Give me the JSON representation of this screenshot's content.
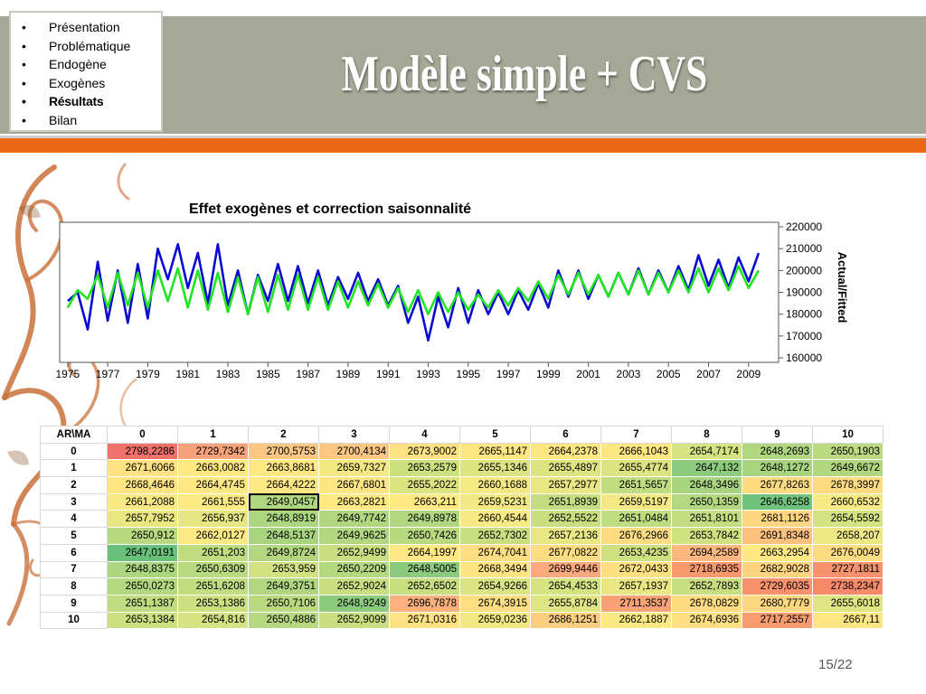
{
  "slide": {
    "title": "Modèle simple + CVS",
    "page_number": "15/22",
    "colors": {
      "header": "#a5a896",
      "accent": "#ea6715"
    }
  },
  "nav": {
    "items": [
      {
        "label": "Présentation",
        "active": false
      },
      {
        "label": "Problématique",
        "active": false
      },
      {
        "label": "Endogène",
        "active": false
      },
      {
        "label": "Exogènes",
        "active": false
      },
      {
        "label": "Résultats",
        "active": true
      },
      {
        "label": "Bilan",
        "active": false
      }
    ]
  },
  "chart_data": {
    "type": "line",
    "title": "Effet exogènes et correction saisonnalité",
    "ylabel": "Actual/Fitted",
    "xlabel": "",
    "ylim": [
      160000,
      220000
    ],
    "xlim": [
      1974.6,
      2010.5
    ],
    "yticks": [
      "220000",
      "210000",
      "200000",
      "190000",
      "180000",
      "170000",
      "160000"
    ],
    "xticks": [
      "1975",
      "1977",
      "1979",
      "1981",
      "1983",
      "1985",
      "1987",
      "1989",
      "1991",
      "1993",
      "1995",
      "1997",
      "1999",
      "2001",
      "2003",
      "2005",
      "2007",
      "2009"
    ],
    "series": [
      {
        "name": "Actual",
        "color": "#0a0ad2",
        "x": [
          1975.0,
          1975.5,
          1976.0,
          1976.5,
          1977.0,
          1977.5,
          1978.0,
          1978.5,
          1979.0,
          1979.5,
          1980.0,
          1980.5,
          1981.0,
          1981.5,
          1982.0,
          1982.5,
          1983.0,
          1983.5,
          1984.0,
          1984.5,
          1985.0,
          1985.5,
          1986.0,
          1986.5,
          1987.0,
          1987.5,
          1988.0,
          1988.5,
          1989.0,
          1989.5,
          1990.0,
          1990.5,
          1991.0,
          1991.5,
          1992.0,
          1992.5,
          1993.0,
          1993.5,
          1994.0,
          1994.5,
          1995.0,
          1995.5,
          1996.0,
          1996.5,
          1997.0,
          1997.5,
          1998.0,
          1998.5,
          1999.0,
          1999.5,
          2000.0,
          2000.5,
          2001.0,
          2001.5,
          2002.0,
          2002.5,
          2003.0,
          2003.5,
          2004.0,
          2004.5,
          2005.0,
          2005.5,
          2006.0,
          2006.5,
          2007.0,
          2007.5,
          2008.0,
          2008.5,
          2009.0,
          2009.5
        ],
        "values": [
          186000,
          190000,
          173000,
          204000,
          177000,
          200000,
          176000,
          203000,
          178000,
          210000,
          196000,
          212000,
          192000,
          208000,
          185000,
          212000,
          184000,
          200000,
          180000,
          198000,
          186000,
          203000,
          186000,
          202000,
          185000,
          200000,
          184000,
          197000,
          187000,
          199000,
          186000,
          196000,
          184000,
          193000,
          176000,
          188000,
          168000,
          188000,
          174000,
          192000,
          176000,
          191000,
          180000,
          190000,
          180000,
          191000,
          182000,
          194000,
          183000,
          200000,
          188000,
          200000,
          187000,
          198000,
          188000,
          199000,
          189000,
          201000,
          189000,
          200000,
          190000,
          202000,
          191000,
          207000,
          193000,
          205000,
          192000,
          206000,
          195000,
          208000
        ]
      },
      {
        "name": "Fitted",
        "color": "#22e522",
        "x": [
          1975.0,
          1975.5,
          1976.0,
          1976.5,
          1977.0,
          1977.5,
          1978.0,
          1978.5,
          1979.0,
          1979.5,
          1980.0,
          1980.5,
          1981.0,
          1981.5,
          1982.0,
          1982.5,
          1983.0,
          1983.5,
          1984.0,
          1984.5,
          1985.0,
          1985.5,
          1986.0,
          1986.5,
          1987.0,
          1987.5,
          1988.0,
          1988.5,
          1989.0,
          1989.5,
          1990.0,
          1990.5,
          1991.0,
          1991.5,
          1992.0,
          1992.5,
          1993.0,
          1993.5,
          1994.0,
          1994.5,
          1995.0,
          1995.5,
          1996.0,
          1996.5,
          1997.0,
          1997.5,
          1998.0,
          1998.5,
          1999.0,
          1999.5,
          2000.0,
          2000.5,
          2001.0,
          2001.5,
          2002.0,
          2002.5,
          2003.0,
          2003.5,
          2004.0,
          2004.5,
          2005.0,
          2005.5,
          2006.0,
          2006.5,
          2007.0,
          2007.5,
          2008.0,
          2008.5,
          2009.0,
          2009.5
        ],
        "values": [
          183000,
          191000,
          187000,
          198000,
          183000,
          199000,
          184000,
          199000,
          183000,
          200000,
          186000,
          201000,
          183000,
          200000,
          182000,
          199000,
          181000,
          197000,
          180000,
          197000,
          181000,
          198000,
          182000,
          198000,
          182000,
          197000,
          182000,
          195000,
          183000,
          195000,
          184000,
          194000,
          183000,
          192000,
          181000,
          191000,
          180000,
          190000,
          181000,
          190000,
          182000,
          189000,
          183000,
          191000,
          184000,
          192000,
          186000,
          195000,
          187000,
          198000,
          189000,
          199000,
          189000,
          198000,
          188000,
          199000,
          189000,
          200000,
          189000,
          199000,
          190000,
          200000,
          190000,
          201000,
          190000,
          201000,
          191000,
          202000,
          192000,
          200000
        ]
      }
    ]
  },
  "table": {
    "corner": "AR\\MA",
    "col_headers": [
      "0",
      "1",
      "2",
      "3",
      "4",
      "5",
      "6",
      "7",
      "8",
      "9",
      "10"
    ],
    "rows": [
      {
        "label": "0",
        "cells": [
          "2798,2286",
          "2729,7342",
          "2700,5753",
          "2700,4134",
          "2673,9002",
          "2665,1147",
          "2664,2378",
          "2666,1043",
          "2654,7174",
          "2648,2693",
          "2650,1903"
        ],
        "colors": [
          "#f0706b",
          "#f7a27a",
          "#fbc782",
          "#fbc782",
          "#fee183",
          "#fee683",
          "#fee683",
          "#fee683",
          "#d6e383",
          "#b0d680",
          "#bcda81"
        ]
      },
      {
        "label": "1",
        "cells": [
          "2671,6066",
          "2663,0082",
          "2663,8681",
          "2659,7327",
          "2653,2579",
          "2655,1346",
          "2655,4897",
          "2655,4774",
          "2647,132",
          "2648,1272",
          "2649,6672"
        ],
        "colors": [
          "#fee283",
          "#fee983",
          "#fee883",
          "#f3e883",
          "#cce080",
          "#dce482",
          "#dce482",
          "#dce482",
          "#8ccb7e",
          "#a8d47f",
          "#b0d680"
        ]
      },
      {
        "label": "2",
        "cells": [
          "2668,4646",
          "2664,4745",
          "2664,4222",
          "2667,6801",
          "2655,2022",
          "2660,1688",
          "2657,2977",
          "2651,5657",
          "2648,3496",
          "2677,8263",
          "2678,3997"
        ],
        "colors": [
          "#fee483",
          "#fee883",
          "#fee883",
          "#fee583",
          "#dce482",
          "#f5e984",
          "#e8e783",
          "#c2dc81",
          "#a8d47f",
          "#fedb81",
          "#fedb81"
        ]
      },
      {
        "label": "3",
        "cells": [
          "2661,2088",
          "2661,555",
          "2649,0457",
          "2663,2821",
          "2663,211",
          "2659,5231",
          "2651,8939",
          "2659,5197",
          "2650,1359",
          "2646,6258",
          "2660,6532"
        ],
        "colors": [
          "#f9e984",
          "#fbe984",
          "#b0d680",
          "#fee983",
          "#fee983",
          "#f3e883",
          "#c4dd81",
          "#f3e883",
          "#b4d880",
          "#70c27c",
          "#f7e984"
        ]
      },
      {
        "label": "4",
        "cells": [
          "2657,7952",
          "2656,937",
          "2648,8919",
          "2649,7742",
          "2649,8978",
          "2660,4544",
          "2652,5522",
          "2651,0484",
          "2651,8101",
          "2681,1126",
          "2654,5592"
        ],
        "colors": [
          "#eae783",
          "#e6e683",
          "#acd580",
          "#b0d680",
          "#b2d780",
          "#f7e984",
          "#c8de81",
          "#c0dc81",
          "#c4dd81",
          "#fed681",
          "#d4e282"
        ]
      },
      {
        "label": "5",
        "cells": [
          "2650,912",
          "2662,0127",
          "2648,5137",
          "2649,9625",
          "2650,7426",
          "2652,7302",
          "2657,2136",
          "2676,2966",
          "2653,7842",
          "2691,8348",
          "2658,207"
        ],
        "colors": [
          "#b8d980",
          "#fde983",
          "#a8d47f",
          "#b2d780",
          "#b8d980",
          "#c8de81",
          "#e8e783",
          "#fedd82",
          "#d0e182",
          "#fcc07f",
          "#ede883"
        ]
      },
      {
        "label": "6",
        "cells": [
          "2647,0191",
          "2651,203",
          "2649,8724",
          "2652,9499",
          "2664,1997",
          "2674,7041",
          "2677,0822",
          "2653,4235",
          "2694,2589",
          "2663,2954",
          "2676,0049"
        ],
        "colors": [
          "#68c07b",
          "#c0dc81",
          "#b2d780",
          "#cade81",
          "#fee883",
          "#fede82",
          "#fedc82",
          "#cee080",
          "#fcb87e",
          "#fee983",
          "#fedd82"
        ]
      },
      {
        "label": "7",
        "cells": [
          "2648,8375",
          "2650,6309",
          "2653,959",
          "2650,2209",
          "2648,5005",
          "2668,3494",
          "2699,9446",
          "2672,0433",
          "2718,6935",
          "2682,9028",
          "2727,1811"
        ],
        "colors": [
          "#acd580",
          "#b8d980",
          "#d2e182",
          "#b4d880",
          "#8ccb7e",
          "#fee483",
          "#fba97d",
          "#fee083",
          "#f8996e",
          "#fed481",
          "#f7916d"
        ]
      },
      {
        "label": "8",
        "cells": [
          "2650,0273",
          "2651,6208",
          "2649,3751",
          "2652,9024",
          "2652,6502",
          "2654,9266",
          "2654,4533",
          "2657,1937",
          "2652,7893",
          "2729,6035",
          "2738,2347"
        ],
        "colors": [
          "#b4d880",
          "#c2dc81",
          "#b0d680",
          "#cade81",
          "#c8de81",
          "#dae482",
          "#d6e383",
          "#e8e783",
          "#c8de81",
          "#f7926c",
          "#f5896a"
        ]
      },
      {
        "label": "9",
        "cells": [
          "2651,1387",
          "2653,1386",
          "2650,7106",
          "2648,9249",
          "2696,7878",
          "2674,3915",
          "2655,8784",
          "2711,3537",
          "2678,0829",
          "2680,7779",
          "2655,6018"
        ],
        "colors": [
          "#c0dc81",
          "#ccdf81",
          "#b8d980",
          "#8ccb7e",
          "#fbb17e",
          "#fede82",
          "#dee582",
          "#f9a275",
          "#fedb81",
          "#fed881",
          "#dee582"
        ]
      },
      {
        "label": "10",
        "cells": [
          "2653,1384",
          "2654,816",
          "2650,4886",
          "2652,9099",
          "2671,0316",
          "2659,0236",
          "2686,1251",
          "2662,1887",
          "2674,6936",
          "2717,2557",
          "2667,11"
        ],
        "colors": [
          "#ccdf81",
          "#d6e383",
          "#b6d880",
          "#cade81",
          "#fee283",
          "#f1e883",
          "#fdcd80",
          "#fde983",
          "#fede82",
          "#f89b6f",
          "#fee583"
        ]
      }
    ],
    "selected": {
      "row": 3,
      "col": 2
    }
  }
}
